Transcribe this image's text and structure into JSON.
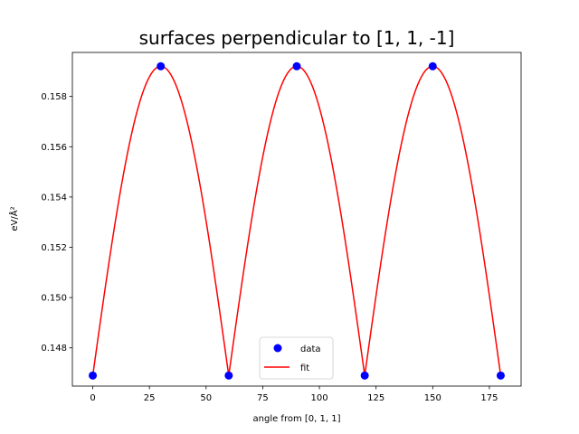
{
  "chart_data": {
    "type": "scatter",
    "title": "surfaces perpendicular to [1, 1, -1]",
    "xlabel": "angle from [0, 1, 1]",
    "ylabel": "eV/Å²",
    "xlim": [
      -9,
      189
    ],
    "ylim": [
      0.14648,
      0.15975
    ],
    "xticks": [
      0,
      25,
      50,
      75,
      100,
      125,
      150,
      175
    ],
    "xtick_labels": [
      "0",
      "25",
      "50",
      "75",
      "100",
      "125",
      "150",
      "175"
    ],
    "yticks": [
      0.148,
      0.15,
      0.152,
      0.154,
      0.156,
      0.158
    ],
    "ytick_labels": [
      "0.148",
      "0.150",
      "0.152",
      "0.154",
      "0.156",
      "0.158"
    ],
    "grid": false,
    "legend_position": "lower-center",
    "series": [
      {
        "name": "data",
        "kind": "markers",
        "color": "#0000ff",
        "x": [
          0,
          30,
          60,
          90,
          120,
          150,
          180
        ],
        "y": [
          0.1469,
          0.1592,
          0.1469,
          0.1592,
          0.1469,
          0.1592,
          0.1469
        ]
      },
      {
        "name": "fit",
        "kind": "line",
        "color": "#ff0000",
        "period": 60,
        "min": 0.1469,
        "max": 0.1592,
        "x_range": [
          0,
          180
        ]
      }
    ]
  }
}
